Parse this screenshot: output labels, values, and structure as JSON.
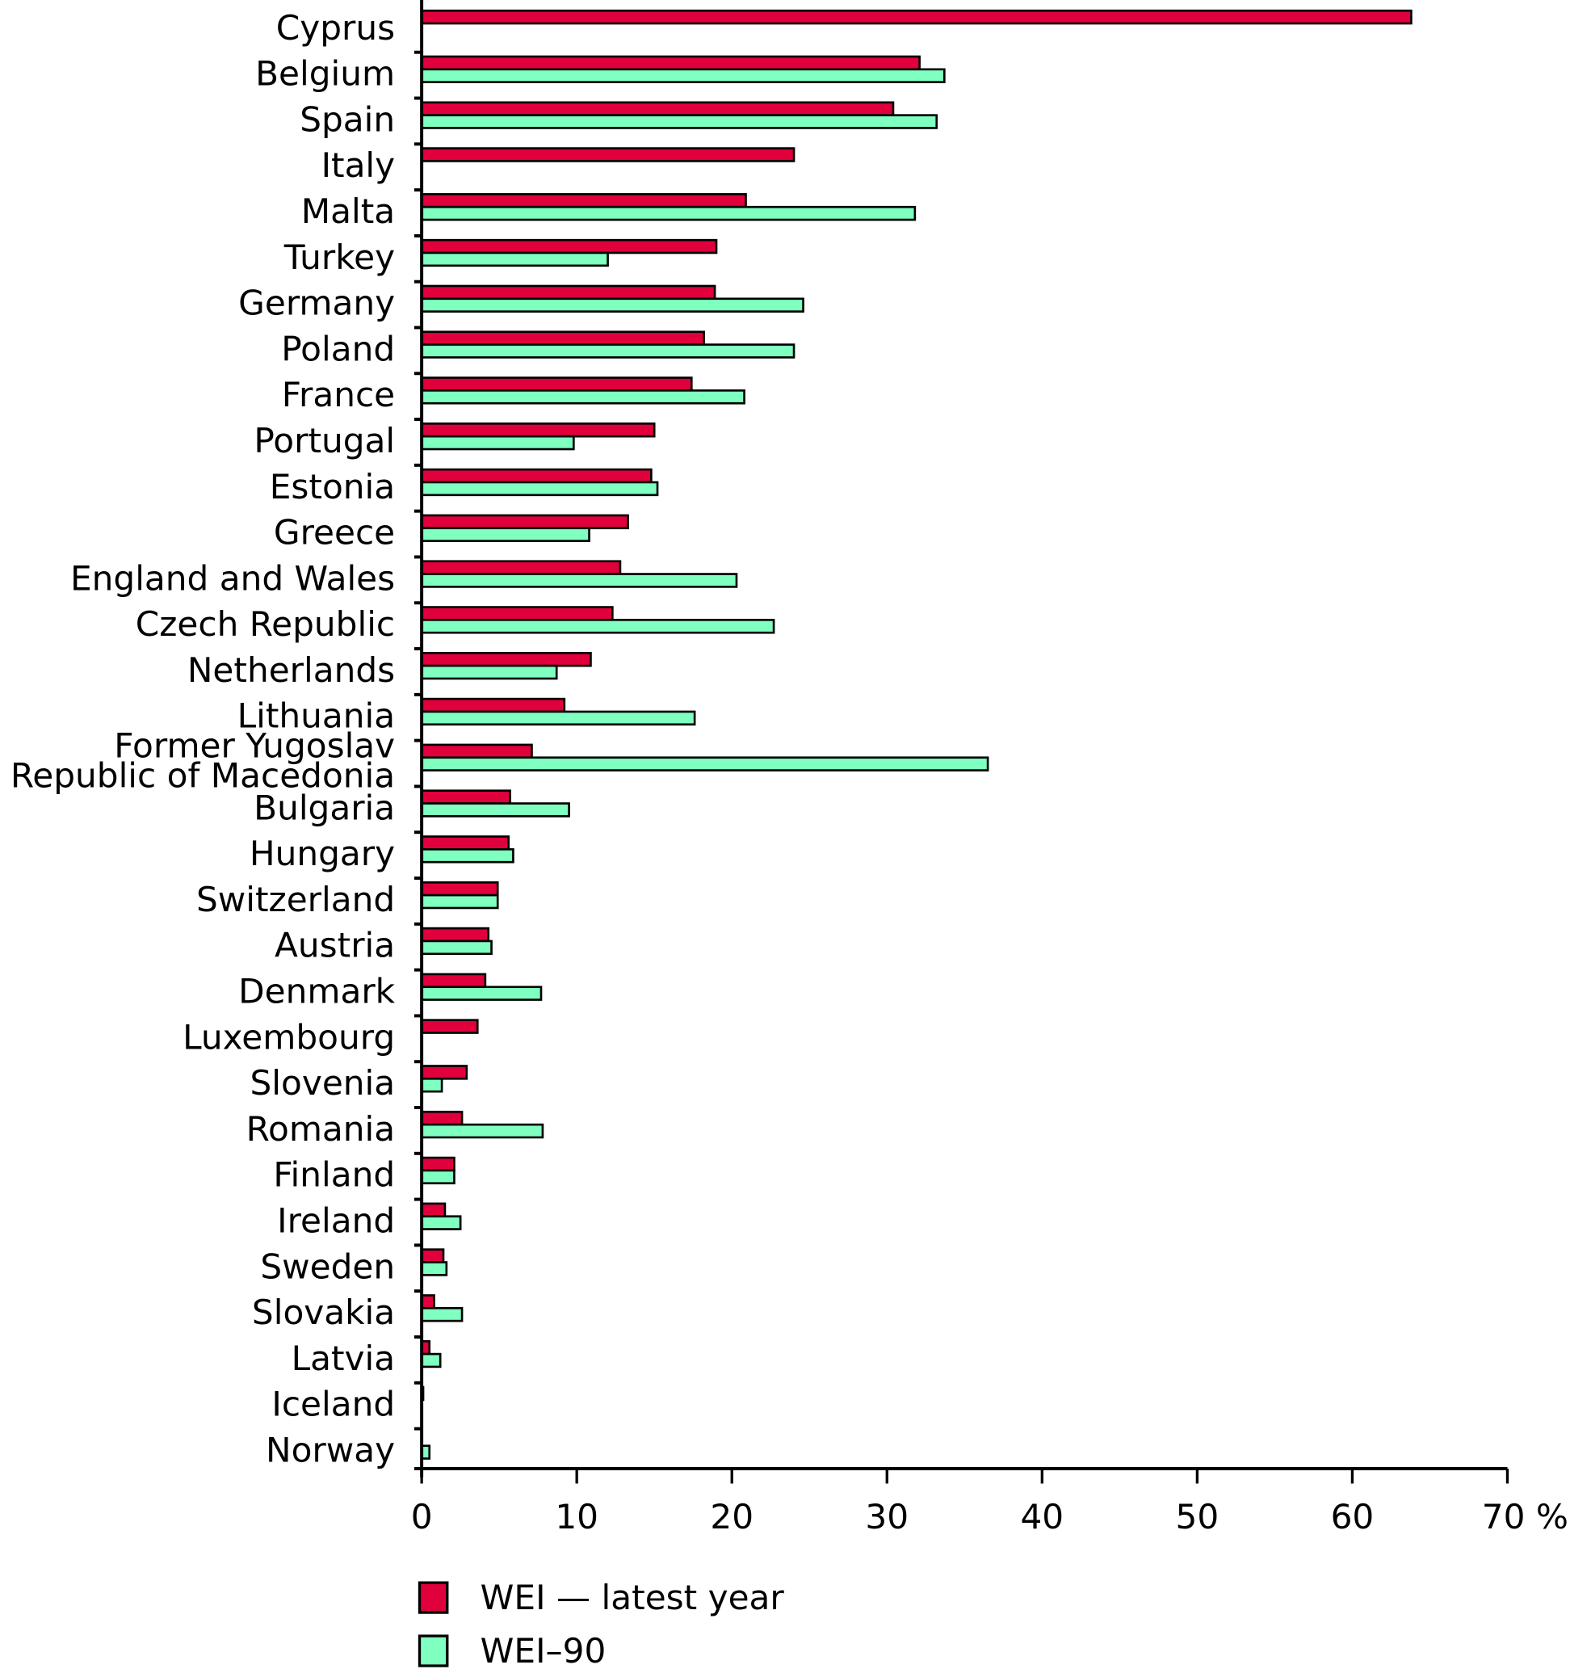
{
  "chart_data": {
    "type": "bar",
    "orientation": "horizontal",
    "title": "",
    "xlabel": "",
    "ylabel": "",
    "xlim": [
      0,
      70
    ],
    "x_unit": "%",
    "x_ticks": [
      "0",
      "10",
      "20",
      "30",
      "40",
      "50",
      "60",
      "70 %"
    ],
    "grid": false,
    "legend_position": "bottom-left",
    "colors": {
      "latest": "#e0003c",
      "wei90": "#7fffc0"
    },
    "categories": [
      "Cyprus",
      "Belgium",
      "Spain",
      "Italy",
      "Malta",
      "Turkey",
      "Germany",
      "Poland",
      "France",
      "Portugal",
      "Estonia",
      "Greece",
      "England and Wales",
      "Czech Republic",
      "Netherlands",
      "Lithuania",
      "Former Yugoslav Republic of Macedonia",
      "Bulgaria",
      "Hungary",
      "Switzerland",
      "Austria",
      "Denmark",
      "Luxembourg",
      "Slovenia",
      "Romania",
      "Finland",
      "Ireland",
      "Sweden",
      "Slovakia",
      "Latvia",
      "Iceland",
      "Norway"
    ],
    "category_lines": {
      "16": [
        "Former Yugoslav",
        "Republic of Macedonia"
      ]
    },
    "series": [
      {
        "name": "WEI — latest year",
        "values": [
          63.8,
          32.1,
          30.4,
          24.0,
          20.9,
          19.0,
          18.9,
          18.2,
          17.4,
          15.0,
          14.8,
          13.3,
          12.8,
          12.3,
          10.9,
          9.2,
          7.1,
          5.7,
          5.6,
          4.9,
          4.3,
          4.1,
          3.6,
          2.9,
          2.6,
          2.1,
          1.5,
          1.4,
          0.8,
          0.5,
          0.1,
          null
        ]
      },
      {
        "name": "WEI–90",
        "values": [
          null,
          33.7,
          33.2,
          null,
          31.8,
          12.0,
          24.6,
          24.0,
          20.8,
          9.8,
          15.2,
          10.8,
          20.3,
          22.7,
          8.7,
          17.6,
          36.5,
          9.5,
          5.9,
          4.9,
          4.5,
          7.7,
          null,
          1.3,
          7.8,
          2.1,
          2.5,
          1.6,
          2.6,
          1.2,
          null,
          0.5
        ]
      }
    ]
  }
}
